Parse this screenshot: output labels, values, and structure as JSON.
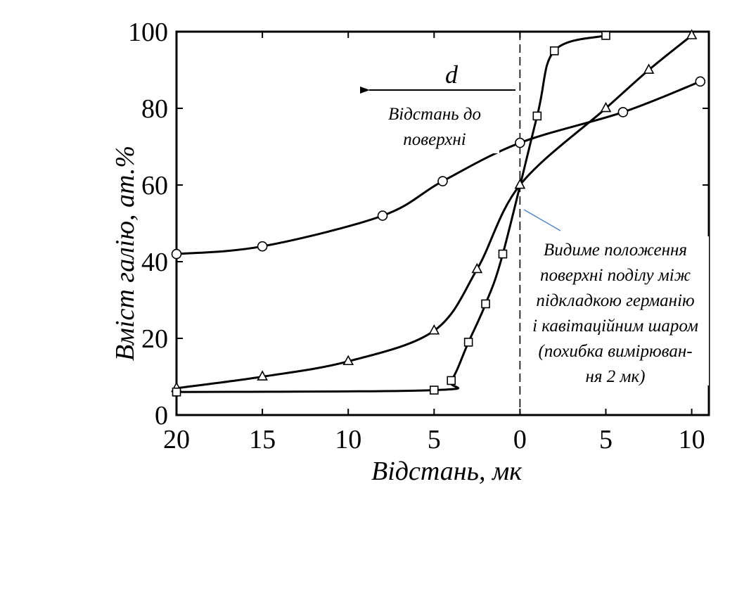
{
  "chart_data": {
    "type": "line",
    "xlabel": "Відстань, мк",
    "ylabel": "Вміст галію, ат.%",
    "xlim": [
      20,
      -11
    ],
    "ylim": [
      0,
      100
    ],
    "x_tick_values": [
      20,
      15,
      10,
      5,
      0,
      -5,
      -10
    ],
    "x_tick_labels": [
      "20",
      "15",
      "10",
      "5",
      "0",
      "5",
      "10"
    ],
    "y_tick_values": [
      0,
      20,
      40,
      60,
      80,
      100
    ],
    "y_tick_labels": [
      "0",
      "20",
      "40",
      "60",
      "80",
      "100"
    ],
    "grid": false,
    "reference_line": {
      "x": 0,
      "style": "dashed"
    },
    "series": [
      {
        "marker": "circle",
        "points": [
          [
            20,
            42
          ],
          [
            15,
            44
          ],
          [
            8,
            52
          ],
          [
            4.5,
            61
          ],
          [
            0,
            71
          ],
          [
            -6,
            79
          ],
          [
            -10.5,
            87
          ]
        ]
      },
      {
        "marker": "triangle",
        "points": [
          [
            20,
            7
          ],
          [
            15,
            10
          ],
          [
            10,
            14
          ],
          [
            5,
            22
          ],
          [
            2.5,
            38
          ],
          [
            0,
            60
          ],
          [
            -5,
            80
          ],
          [
            -7.5,
            90
          ],
          [
            -10,
            99
          ]
        ]
      },
      {
        "marker": "square",
        "points": [
          [
            20,
            6
          ],
          [
            5,
            6.5
          ],
          [
            4,
            9
          ],
          [
            3,
            19
          ],
          [
            2,
            29
          ],
          [
            1,
            42
          ],
          [
            -1,
            78
          ],
          [
            -2,
            95
          ],
          [
            -5,
            99
          ]
        ]
      }
    ],
    "annotations": {
      "d_symbol": "d",
      "arrow_label_line1": "Відстань до",
      "arrow_label_line2": "поверхні",
      "interface_note": [
        "Видиме положення",
        "поверхні поділу між",
        "підкладкою германію",
        "і кавітаційним шаром",
        "(похибка вимірюван-",
        "ня 2 мк)"
      ]
    }
  }
}
